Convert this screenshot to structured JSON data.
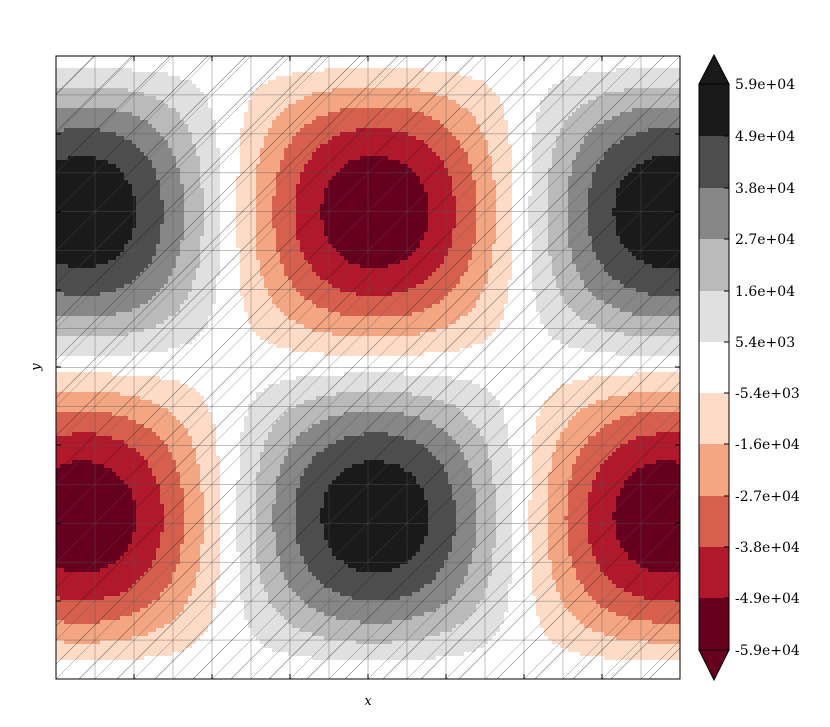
{
  "chart_data": {
    "type": "contourf",
    "title": "",
    "xlabel": "x",
    "ylabel": "y",
    "grid": true,
    "mesh": "triangulated, hatched",
    "colormap": "RdGy",
    "colorbar": {
      "position": "right",
      "extend": "both",
      "tick_labels": [
        "5.9e+04",
        "4.9e+04",
        "3.8e+04",
        "2.7e+04",
        "1.6e+04",
        "5.4e+03",
        "-5.4e+03",
        "-1.6e+04",
        "-2.7e+04",
        "-3.8e+04",
        "-4.9e+04",
        "-5.9e+04"
      ],
      "levels": [
        59000,
        49000,
        38000,
        27000,
        16000,
        5400,
        -5400,
        -16000,
        -27000,
        -38000,
        -49000,
        -59000
      ],
      "colors": [
        "#1a1a1a",
        "#4d4d4d",
        "#878787",
        "#bababa",
        "#e0e0e0",
        "#ffffff",
        "#fddbc7",
        "#f4a582",
        "#d6604d",
        "#b2182b",
        "#67001f"
      ]
    },
    "field": {
      "description": "product of sines, 2x2 cells",
      "peaks": [
        {
          "quadrant": "top-left",
          "sign": "positive"
        },
        {
          "quadrant": "top-center",
          "sign": "negative"
        },
        {
          "quadrant": "top-right",
          "sign": "positive"
        },
        {
          "quadrant": "bottom-left",
          "sign": "negative"
        },
        {
          "quadrant": "bottom-center",
          "sign": "positive"
        },
        {
          "quadrant": "bottom-right",
          "sign": "negative"
        }
      ],
      "amplitude": 59000
    }
  }
}
